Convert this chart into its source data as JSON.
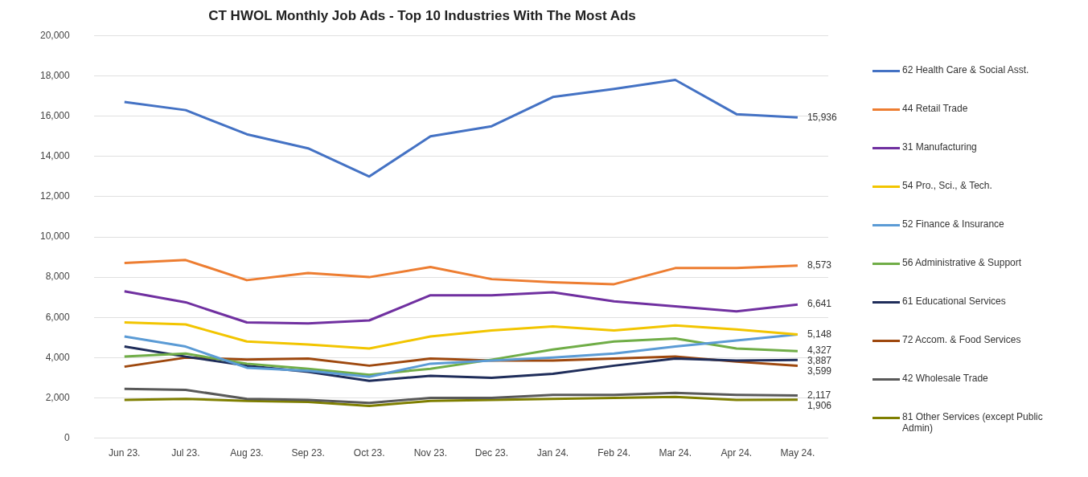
{
  "chart_data": {
    "type": "line",
    "title": "CT HWOL Monthly Job Ads - Top 10 Industries With The Most Ads",
    "categories": [
      "Jun 23.",
      "Jul 23.",
      "Aug 23.",
      "Sep 23.",
      "Oct 23.",
      "Nov 23.",
      "Dec 23.",
      "Jan 24.",
      "Feb 24.",
      "Mar 24.",
      "Apr 24.",
      "May 24."
    ],
    "ylim": [
      0,
      20000
    ],
    "yticks": [
      0,
      {
        "value": 2000,
        "label": "2,000"
      },
      {
        "value": 4000,
        "label": "4,000"
      },
      {
        "value": 6000,
        "label": "6,000"
      },
      {
        "value": 8000,
        "label": "8,000"
      },
      {
        "value": 10000,
        "label": "10,000"
      },
      {
        "value": 12000,
        "label": "12,000"
      },
      {
        "value": 14000,
        "label": "14,000"
      },
      {
        "value": 16000,
        "label": "16,000"
      },
      {
        "value": 18000,
        "label": "18,000"
      },
      {
        "value": 20000,
        "label": "20,000"
      }
    ],
    "grid": "y",
    "legend": "right",
    "marker": "none",
    "line_style": "solid",
    "series": [
      {
        "name": "62 Health Care & Social Asst.",
        "color": "#4472c4",
        "values": [
          16700,
          16300,
          15100,
          14400,
          13000,
          15000,
          15500,
          16950,
          17350,
          17800,
          16100,
          15936
        ],
        "value_labels": [
          null,
          null,
          null,
          null,
          null,
          null,
          null,
          null,
          null,
          null,
          null,
          "15,936"
        ]
      },
      {
        "name": "44 Retail Trade",
        "color": "#ed7d31",
        "values": [
          8700,
          8850,
          7850,
          8200,
          8000,
          8500,
          7900,
          7750,
          7650,
          8450,
          8450,
          8573
        ],
        "value_labels": [
          null,
          null,
          null,
          null,
          null,
          null,
          null,
          null,
          null,
          null,
          null,
          "8,573"
        ]
      },
      {
        "name": "31 Manufacturing",
        "color": "#7030a0",
        "values": [
          7300,
          6750,
          5750,
          5700,
          5850,
          7100,
          7100,
          7250,
          6800,
          6550,
          6300,
          6641
        ],
        "value_labels": [
          null,
          null,
          null,
          null,
          null,
          null,
          null,
          null,
          null,
          null,
          null,
          "6,641"
        ]
      },
      {
        "name": "54 Pro., Sci., & Tech.",
        "color": "#f2c500",
        "values": [
          5750,
          5650,
          4800,
          4650,
          4450,
          5050,
          5350,
          5550,
          5350,
          5600,
          5400,
          5150
        ],
        "value_labels": [
          null,
          null,
          null,
          null,
          null,
          null,
          null,
          null,
          null,
          null,
          null,
          null
        ]
      },
      {
        "name": "52 Finance & Insurance",
        "color": "#5b9bd5",
        "values": [
          5050,
          4550,
          3500,
          3350,
          3050,
          3700,
          3850,
          4000,
          4200,
          4550,
          4850,
          5148
        ],
        "value_labels": [
          null,
          null,
          null,
          null,
          null,
          null,
          null,
          null,
          null,
          null,
          null,
          "5,148"
        ]
      },
      {
        "name": "56 Administrative & Support",
        "color": "#70ad47",
        "values": [
          4050,
          4200,
          3700,
          3450,
          3150,
          3450,
          3900,
          4400,
          4800,
          4950,
          4450,
          4327
        ],
        "value_labels": [
          null,
          null,
          null,
          null,
          null,
          null,
          null,
          null,
          null,
          null,
          null,
          "4,327"
        ]
      },
      {
        "name": "61 Educational Services",
        "color": "#1f2d5a",
        "values": [
          4550,
          4050,
          3600,
          3300,
          2850,
          3100,
          3000,
          3200,
          3600,
          3950,
          3850,
          3887
        ],
        "value_labels": [
          null,
          null,
          null,
          null,
          null,
          null,
          null,
          null,
          null,
          null,
          null,
          "3,887"
        ]
      },
      {
        "name": "72 Accom. & Food Services",
        "color": "#9e480e",
        "values": [
          3550,
          4000,
          3900,
          3950,
          3600,
          3950,
          3850,
          3850,
          3950,
          4050,
          3800,
          3599
        ],
        "value_labels": [
          null,
          null,
          null,
          null,
          null,
          null,
          null,
          null,
          null,
          null,
          null,
          "3,599"
        ]
      },
      {
        "name": "42 Wholesale Trade",
        "color": "#595959",
        "values": [
          2450,
          2400,
          1950,
          1900,
          1750,
          2000,
          2000,
          2150,
          2150,
          2250,
          2150,
          2117
        ],
        "value_labels": [
          null,
          null,
          null,
          null,
          null,
          null,
          null,
          null,
          null,
          null,
          null,
          "2,117"
        ]
      },
      {
        "name": "81 Other Services (except Public Admin)",
        "color": "#7f7f00",
        "values": [
          1900,
          1950,
          1850,
          1800,
          1600,
          1850,
          1900,
          1950,
          2000,
          2050,
          1900,
          1906
        ],
        "value_labels": [
          null,
          null,
          null,
          null,
          null,
          null,
          null,
          null,
          null,
          null,
          null,
          "1,906"
        ]
      }
    ]
  }
}
